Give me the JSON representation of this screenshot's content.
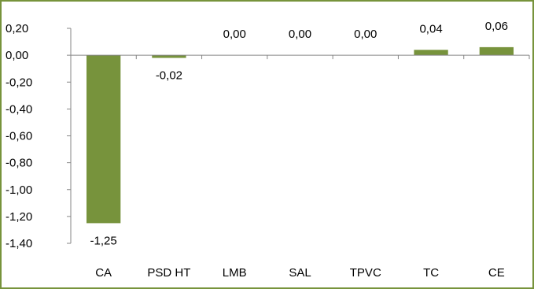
{
  "chart_data": {
    "type": "bar",
    "categories": [
      "CA",
      "PSD HT",
      "LMB",
      "SAL",
      "TPVC",
      "TC",
      "CE"
    ],
    "values": [
      -1.25,
      -0.02,
      0.0,
      0.0,
      0.0,
      0.04,
      0.06
    ],
    "data_labels": [
      "-1,25",
      "-0,02",
      "0,00",
      "0,00",
      "0,00",
      "0,04",
      "0,06"
    ],
    "yticks": [
      0.2,
      0.0,
      -0.2,
      -0.4,
      -0.6,
      -0.8,
      -1.0,
      -1.2,
      -1.4
    ],
    "ytick_labels": [
      "0,20",
      "0,00",
      "-0,20",
      "-0,40",
      "-0,60",
      "-0,80",
      "-1,00",
      "-1,20",
      "-1,40"
    ],
    "ylim": [
      -1.4,
      0.2
    ],
    "grid": false,
    "legend": "none",
    "bar_color": "#77933c",
    "axis_color": "#868686",
    "border_color": "#77933c"
  }
}
